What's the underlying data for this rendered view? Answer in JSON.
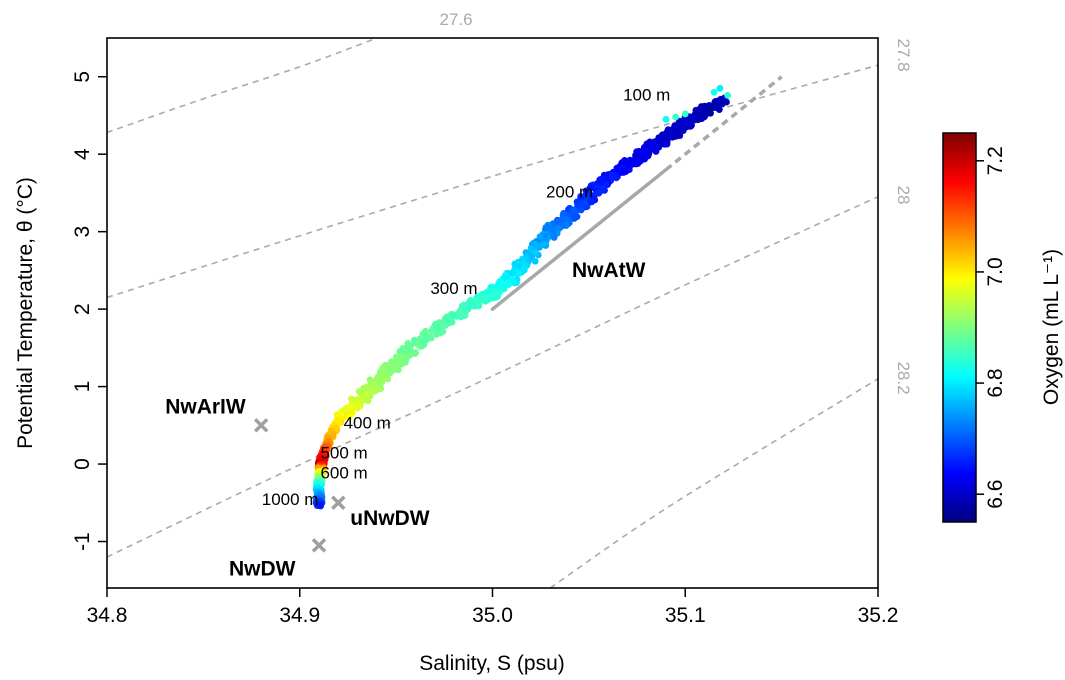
{
  "chart_data": {
    "type": "scatter",
    "xlabel": "Salinity, S (psu)",
    "ylabel": "Potential Temperature, θ (°C)",
    "xlim": [
      34.8,
      35.2
    ],
    "ylim": [
      -1.6,
      5.5
    ],
    "x_ticks": [
      "34.8",
      "34.9",
      "35.0",
      "35.1",
      "35.2"
    ],
    "y_ticks": [
      "-1",
      "0",
      "1",
      "2",
      "3",
      "4",
      "5"
    ],
    "colorbar": {
      "label": "Oxygen (mL L⁻¹)",
      "range": [
        6.55,
        7.25
      ],
      "ticks": [
        "6.6",
        "6.8",
        "7.0",
        "7.2"
      ],
      "colors": [
        "#00007f",
        "#0000ff",
        "#007fff",
        "#00ffff",
        "#7fff7f",
        "#ffff00",
        "#ff7f00",
        "#ff0000",
        "#7f0000"
      ]
    },
    "isopycnals": [
      {
        "label": "27.6",
        "points": [
          [
            34.8,
            4.28
          ],
          [
            34.85,
            4.72
          ],
          [
            34.9,
            5.12
          ],
          [
            34.94,
            5.5
          ]
        ]
      },
      {
        "label": "27.8",
        "points": [
          [
            34.8,
            2.15
          ],
          [
            34.9,
            2.95
          ],
          [
            35.0,
            3.72
          ],
          [
            35.1,
            4.46
          ],
          [
            35.2,
            5.15
          ]
        ]
      },
      {
        "label": "28",
        "points": [
          [
            34.8,
            -1.2
          ],
          [
            34.9,
            0.0
          ],
          [
            35.0,
            1.13
          ],
          [
            35.1,
            2.32
          ],
          [
            35.2,
            3.45
          ]
        ]
      },
      {
        "label": "28.2",
        "points": [
          [
            35.03,
            -1.6
          ],
          [
            35.08,
            -0.72
          ],
          [
            35.14,
            0.2
          ],
          [
            35.2,
            1.1
          ]
        ]
      }
    ],
    "water_masses": [
      {
        "label": "NwArIW",
        "x": 34.88,
        "y": 0.5
      },
      {
        "label": "uNwDW",
        "x": 34.92,
        "y": -0.5
      },
      {
        "label": "NwDW",
        "x": 34.91,
        "y": -1.05
      }
    ],
    "nwatw_line": {
      "label": "NwAtW",
      "points": [
        [
          35.0,
          2.0
        ],
        [
          35.15,
          5.0
        ]
      ]
    },
    "depth_labels": [
      {
        "label": "100 m",
        "x": 35.08,
        "y": 4.75
      },
      {
        "label": "200 m",
        "x": 35.04,
        "y": 3.5
      },
      {
        "label": "300 m",
        "x": 34.98,
        "y": 2.25
      },
      {
        "label": "400 m",
        "x": 34.935,
        "y": 0.52
      },
      {
        "label": "500 m",
        "x": 34.923,
        "y": 0.13
      },
      {
        "label": "600 m",
        "x": 34.923,
        "y": -0.13
      },
      {
        "label": "1000 m",
        "x": 34.895,
        "y": -0.47
      }
    ],
    "profile": [
      {
        "x": 35.12,
        "y": 4.7,
        "o2": 6.6
      },
      {
        "x": 35.11,
        "y": 4.55,
        "o2": 6.58
      },
      {
        "x": 35.1,
        "y": 4.4,
        "o2": 6.6
      },
      {
        "x": 35.09,
        "y": 4.2,
        "o2": 6.6
      },
      {
        "x": 35.08,
        "y": 4.05,
        "o2": 6.62
      },
      {
        "x": 35.07,
        "y": 3.85,
        "o2": 6.63
      },
      {
        "x": 35.06,
        "y": 3.68,
        "o2": 6.65
      },
      {
        "x": 35.05,
        "y": 3.45,
        "o2": 6.66
      },
      {
        "x": 35.04,
        "y": 3.2,
        "o2": 6.7
      },
      {
        "x": 35.03,
        "y": 3.0,
        "o2": 6.73
      },
      {
        "x": 35.02,
        "y": 2.7,
        "o2": 6.77
      },
      {
        "x": 35.01,
        "y": 2.4,
        "o2": 6.8
      },
      {
        "x": 35.0,
        "y": 2.2,
        "o2": 6.83
      },
      {
        "x": 34.99,
        "y": 2.05,
        "o2": 6.85
      },
      {
        "x": 34.975,
        "y": 1.8,
        "o2": 6.87
      },
      {
        "x": 34.96,
        "y": 1.55,
        "o2": 6.88
      },
      {
        "x": 34.95,
        "y": 1.3,
        "o2": 6.9
      },
      {
        "x": 34.94,
        "y": 1.05,
        "o2": 6.92
      },
      {
        "x": 34.93,
        "y": 0.8,
        "o2": 6.95
      },
      {
        "x": 34.92,
        "y": 0.55,
        "o2": 7.0
      },
      {
        "x": 34.915,
        "y": 0.3,
        "o2": 7.05
      },
      {
        "x": 34.912,
        "y": 0.1,
        "o2": 7.15
      },
      {
        "x": 34.911,
        "y": 0.0,
        "o2": 7.2
      },
      {
        "x": 34.911,
        "y": -0.1,
        "o2": 7.0
      },
      {
        "x": 34.91,
        "y": -0.25,
        "o2": 6.85
      },
      {
        "x": 34.91,
        "y": -0.4,
        "o2": 6.75
      },
      {
        "x": 34.91,
        "y": -0.55,
        "o2": 6.65
      }
    ]
  }
}
